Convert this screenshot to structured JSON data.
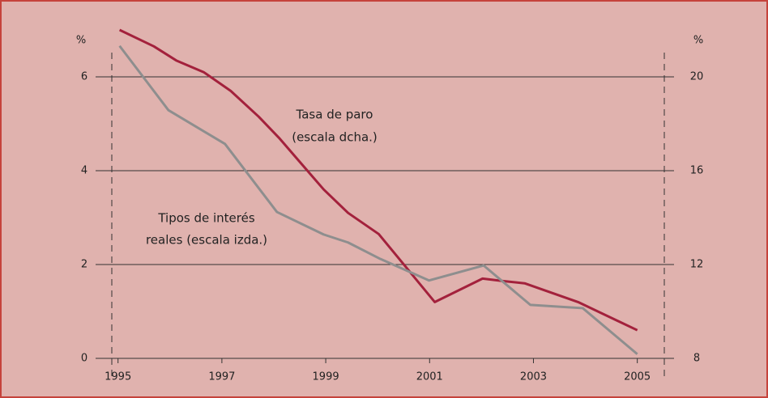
{
  "chart_data": {
    "type": "line",
    "y_unit": "%",
    "y2_unit": "%",
    "annotations": [
      "Tasa de paro",
      "(escala dcha.)",
      "Tipos de interés",
      "reales (escala izda.)"
    ],
    "xlim": [
      1994.88,
      2005.52
    ],
    "xticks": [
      1995,
      1997,
      1999,
      2001,
      2003,
      2005
    ],
    "ylim": [
      0,
      7
    ],
    "yticks": [
      0,
      2,
      4,
      6
    ],
    "y2lim": [
      8,
      22
    ],
    "y2ticks": [
      8,
      12,
      16,
      20
    ],
    "grid": true,
    "series": [
      {
        "name": "Tasa de paro",
        "color": "#a3213c",
        "axis": "y2",
        "x": [
          1995.03,
          1995.69,
          1996.12,
          1996.65,
          1997.17,
          1997.71,
          1998.1,
          1998.49,
          1998.96,
          1999.43,
          2000.02,
          2001.1,
          2002.02,
          2002.39,
          2002.83,
          2003.86,
          2005.0
        ],
        "values": [
          22.0,
          21.3,
          20.7,
          20.2,
          19.4,
          18.3,
          17.4,
          16.4,
          15.2,
          14.2,
          13.3,
          10.4,
          11.4,
          11.3,
          11.2,
          10.4,
          9.2
        ]
      },
      {
        "name": "Tipos de interés reales",
        "color": "#8e8e8e",
        "axis": "y",
        "x": [
          1995.03,
          1995.97,
          1997.06,
          1998.06,
          1998.96,
          1999.43,
          2000.05,
          2000.99,
          2002.04,
          2002.94,
          2003.95,
          2005.0
        ],
        "values": [
          6.66,
          5.29,
          4.57,
          3.12,
          2.64,
          2.47,
          2.12,
          1.66,
          1.98,
          1.14,
          1.07,
          0.09
        ]
      }
    ]
  }
}
